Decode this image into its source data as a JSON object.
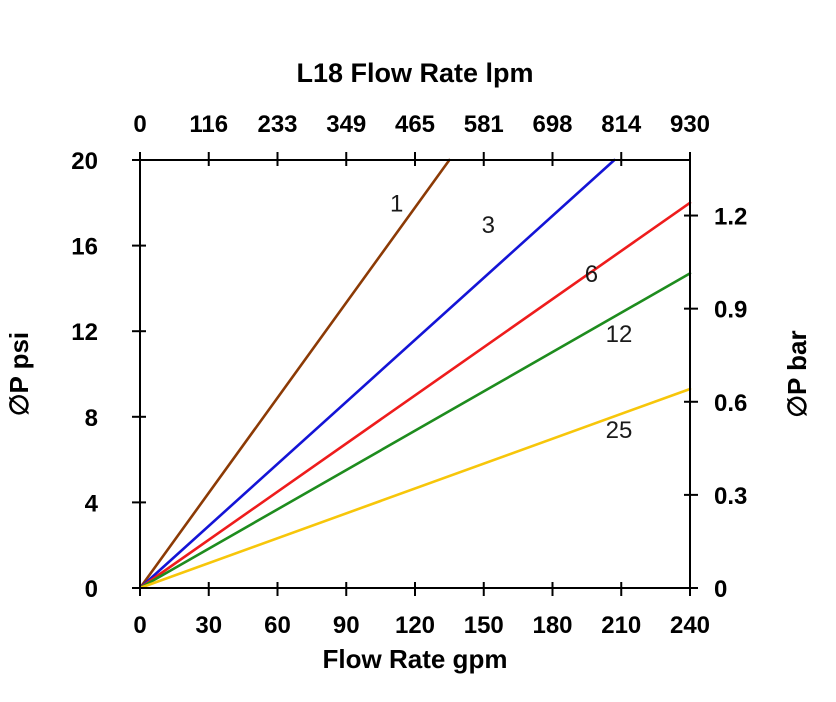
{
  "chart_data": {
    "type": "line",
    "title": "L18 Flow Rate lpm",
    "xlabel": "Flow Rate gpm",
    "ylabel_left": "∅P psi",
    "ylabel_right": "∅P bar",
    "xlim": [
      0,
      240
    ],
    "ylim": [
      0,
      20
    ],
    "grid": false,
    "legend": "none (inline line labels)",
    "x_ticks": [
      0,
      30,
      60,
      90,
      120,
      150,
      180,
      210,
      240
    ],
    "x2_tick_labels": [
      0,
      116,
      233,
      349,
      465,
      581,
      698,
      814,
      930
    ],
    "y_ticks_left": [
      0,
      4,
      8,
      12,
      16,
      20
    ],
    "y_ticks_right": [
      0,
      0.3,
      0.6,
      0.9,
      1.2
    ],
    "bar_to_psi": 14.5038,
    "series": [
      {
        "name": "1",
        "color": "#8C3A05",
        "x": [
          0,
          135
        ],
        "y": [
          0,
          20
        ],
        "label_at": {
          "x": 112,
          "y": 17.6
        }
      },
      {
        "name": "3",
        "color": "#1414D6",
        "x": [
          0,
          207
        ],
        "y": [
          0,
          20
        ],
        "label_at": {
          "x": 152,
          "y": 16.6
        }
      },
      {
        "name": "6",
        "color": "#EE1C1C",
        "x": [
          0,
          240
        ],
        "y": [
          0,
          18.0
        ],
        "label_at": {
          "x": 197,
          "y": 14.3
        }
      },
      {
        "name": "12",
        "color": "#1E8C1E",
        "x": [
          0,
          240
        ],
        "y": [
          0,
          14.7
        ],
        "label_at": {
          "x": 209,
          "y": 11.5
        }
      },
      {
        "name": "25",
        "color": "#F7C60A",
        "x": [
          0,
          240
        ],
        "y": [
          0,
          9.3
        ],
        "label_at": {
          "x": 209,
          "y": 7.0
        }
      }
    ]
  }
}
